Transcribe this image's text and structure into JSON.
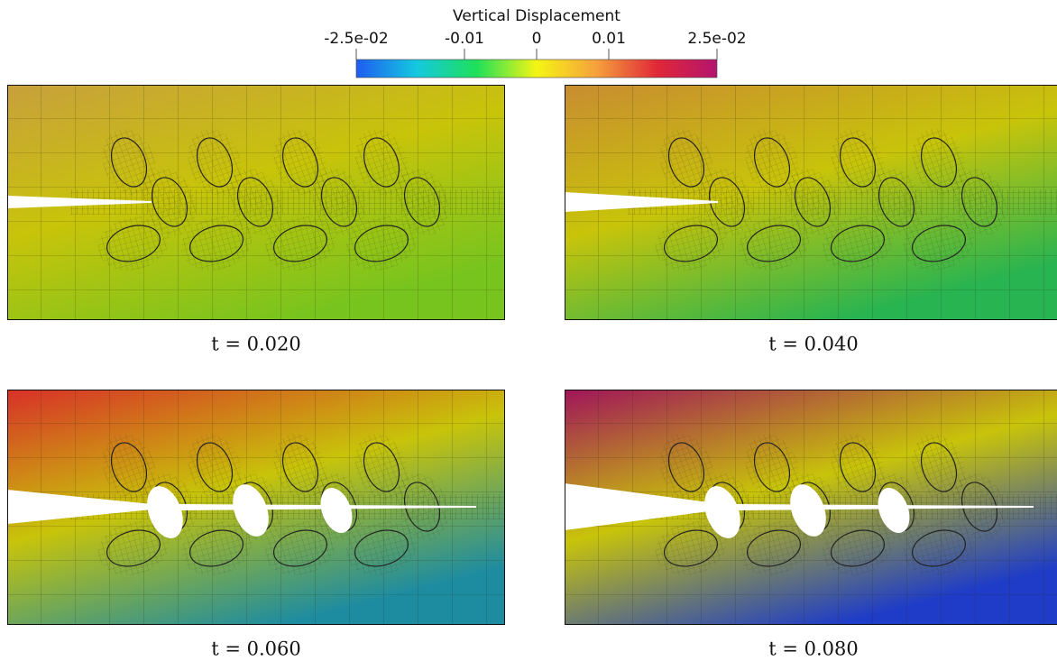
{
  "colorbar": {
    "title": "Vertical Displacement",
    "range": [
      -0.025,
      0.025
    ],
    "colors": [
      "#1f5cf0",
      "#14c8e0",
      "#1ee05a",
      "#f5f514",
      "#f5a03c",
      "#e02838",
      "#b4146e"
    ],
    "ticks": [
      {
        "value": -0.025,
        "label": "-2.5e-02"
      },
      -0.01,
      0,
      0.01,
      {
        "value": 0.025,
        "label": "2.5e-02"
      }
    ]
  },
  "panels": [
    {
      "caption": "t = 0.020"
    },
    {
      "caption": "t = 0.040"
    },
    {
      "caption": "t = 0.060"
    },
    {
      "caption": "t = 0.080"
    }
  ]
}
